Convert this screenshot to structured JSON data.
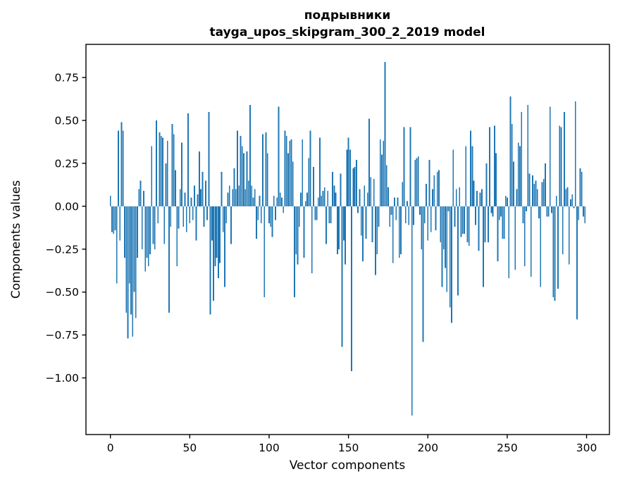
{
  "chart_data": {
    "type": "bar",
    "title": "подрывники",
    "subtitle": "tayga_upos_skipgram_300_2_2019 model",
    "xlabel": "Vector components",
    "ylabel": "Components values",
    "bar_color": "#1f77b4",
    "axis_color": "#000000",
    "background_color": "#ffffff",
    "grid": false,
    "legend_position": "none",
    "x_start": 0,
    "bar_width_units": 0.8,
    "xlim": [
      -15.4,
      314.4
    ],
    "ylim": [
      -1.33,
      0.943
    ],
    "x_ticks": [
      0,
      50,
      100,
      150,
      200,
      250,
      300
    ],
    "y_ticks": [
      0.75,
      0.5,
      0.25,
      0.0,
      -0.25,
      -0.5,
      -0.75,
      -1.0
    ],
    "values": [
      0.06,
      -0.15,
      -0.16,
      -0.14,
      -0.45,
      0.44,
      -0.2,
      0.49,
      0.44,
      -0.3,
      -0.62,
      -0.77,
      -0.45,
      -0.63,
      -0.76,
      -0.5,
      -0.65,
      -0.3,
      0.1,
      0.15,
      -0.25,
      0.09,
      -0.38,
      -0.3,
      -0.35,
      -0.28,
      0.35,
      -0.22,
      -0.25,
      0.5,
      -0.1,
      0.43,
      0.41,
      0.4,
      -0.22,
      0.25,
      0.38,
      -0.62,
      -0.12,
      0.48,
      0.42,
      0.21,
      -0.35,
      -0.13,
      0.1,
      0.37,
      -0.12,
      0.08,
      -0.15,
      0.54,
      -0.1,
      0.05,
      -0.08,
      0.12,
      -0.2,
      0.07,
      0.32,
      0.1,
      0.2,
      -0.12,
      0.15,
      -0.08,
      0.55,
      -0.63,
      -0.2,
      -0.55,
      -0.35,
      -0.3,
      -0.42,
      -0.33,
      0.2,
      -0.15,
      -0.47,
      -0.1,
      0.08,
      0.12,
      -0.22,
      0.1,
      0.22,
      0.1,
      0.44,
      0.12,
      0.41,
      0.35,
      0.31,
      0.1,
      0.32,
      0.15,
      0.59,
      0.12,
      0.05,
      0.1,
      -0.19,
      -0.08,
      0.06,
      -0.1,
      0.42,
      -0.53,
      0.43,
      0.31,
      -0.1,
      -0.12,
      -0.18,
      0.06,
      -0.08,
      0.05,
      0.58,
      0.08,
      0.05,
      -0.04,
      0.44,
      0.41,
      0.31,
      0.38,
      0.39,
      0.26,
      -0.53,
      -0.28,
      -0.34,
      -0.12,
      0.08,
      0.39,
      -0.3,
      0.03,
      0.08,
      0.28,
      0.44,
      -0.39,
      0.23,
      -0.08,
      -0.08,
      0.05,
      0.4,
      0.06,
      0.09,
      0.11,
      -0.22,
      0.09,
      -0.1,
      -0.1,
      0.2,
      0.12,
      0.08,
      -0.28,
      -0.25,
      0.19,
      -0.82,
      -0.2,
      -0.34,
      0.33,
      0.4,
      0.33,
      -0.96,
      0.22,
      0.23,
      0.27,
      -0.04,
      0.1,
      -0.17,
      -0.32,
      0.12,
      -0.19,
      0.08,
      0.51,
      0.17,
      -0.21,
      0.16,
      -0.4,
      -0.28,
      -0.12,
      0.39,
      0.3,
      0.38,
      0.84,
      0.24,
      0.11,
      -0.12,
      -0.05,
      -0.33,
      0.05,
      -0.08,
      0.05,
      -0.3,
      -0.28,
      0.14,
      0.46,
      -0.1,
      0.03,
      -0.11,
      0.46,
      -1.22,
      -0.11,
      0.27,
      0.28,
      0.29,
      -0.05,
      -0.25,
      -0.79,
      -0.1,
      0.13,
      -0.2,
      0.27,
      -0.15,
      0.1,
      0.18,
      -0.14,
      0.2,
      0.21,
      -0.21,
      -0.47,
      -0.25,
      -0.36,
      -0.5,
      -0.03,
      -0.59,
      -0.68,
      0.33,
      -0.12,
      0.1,
      -0.52,
      0.11,
      -0.18,
      -0.16,
      -0.16,
      0.35,
      -0.21,
      -0.23,
      0.44,
      0.35,
      0.15,
      -0.11,
      0.09,
      -0.26,
      0.08,
      0.1,
      -0.47,
      -0.21,
      0.25,
      -0.21,
      0.46,
      -0.04,
      -0.06,
      0.47,
      0.31,
      -0.32,
      -0.08,
      -0.06,
      -0.19,
      -0.19,
      0.06,
      0.05,
      -0.42,
      0.64,
      0.48,
      0.26,
      -0.37,
      0.1,
      0.37,
      0.35,
      0.55,
      -0.1,
      -0.35,
      -0.03,
      0.59,
      0.19,
      -0.41,
      0.18,
      0.13,
      0.15,
      0.1,
      -0.07,
      -0.47,
      0.14,
      0.16,
      0.25,
      -0.06,
      -0.06,
      0.58,
      -0.04,
      -0.53,
      -0.55,
      0.06,
      -0.48,
      0.47,
      0.46,
      -0.28,
      0.55,
      0.1,
      0.11,
      -0.34,
      0.04,
      0.07,
      -0.01,
      0.61,
      -0.66,
      -0.08,
      0.22,
      0.2,
      -0.06,
      -0.1
    ]
  },
  "layout_note": ""
}
